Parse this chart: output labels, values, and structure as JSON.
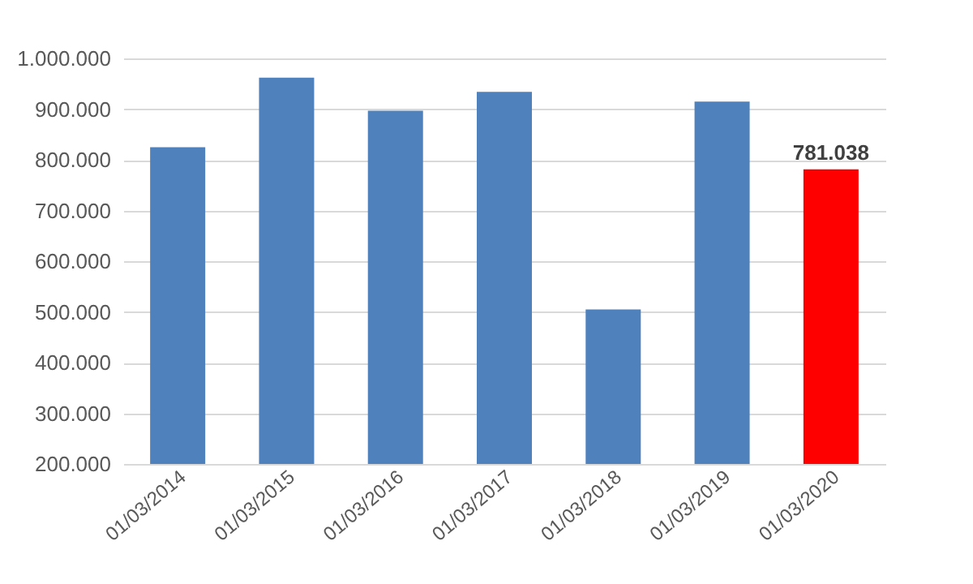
{
  "chart_data": {
    "type": "bar",
    "categories": [
      "01/03/2014",
      "01/03/2015",
      "01/03/2016",
      "01/03/2017",
      "01/03/2018",
      "01/03/2019",
      "01/03/2020"
    ],
    "values": [
      825000,
      962000,
      897000,
      934000,
      505000,
      915000,
      781038
    ],
    "colors": [
      "#4f81bd",
      "#4f81bd",
      "#4f81bd",
      "#4f81bd",
      "#4f81bd",
      "#4f81bd",
      "#ff0000"
    ],
    "value_labels": [
      null,
      null,
      null,
      null,
      null,
      null,
      "781.038"
    ],
    "ylim": [
      200000,
      1000000
    ],
    "yticks": [
      {
        "value": 200000,
        "label": "200.000"
      },
      {
        "value": 300000,
        "label": "300.000"
      },
      {
        "value": 400000,
        "label": "400.000"
      },
      {
        "value": 500000,
        "label": "500.000"
      },
      {
        "value": 600000,
        "label": "600.000"
      },
      {
        "value": 700000,
        "label": "700.000"
      },
      {
        "value": 800000,
        "label": "800.000"
      },
      {
        "value": 900000,
        "label": "900.000"
      },
      {
        "value": 1000000,
        "label": "1.000.000"
      }
    ],
    "grid": "y"
  }
}
